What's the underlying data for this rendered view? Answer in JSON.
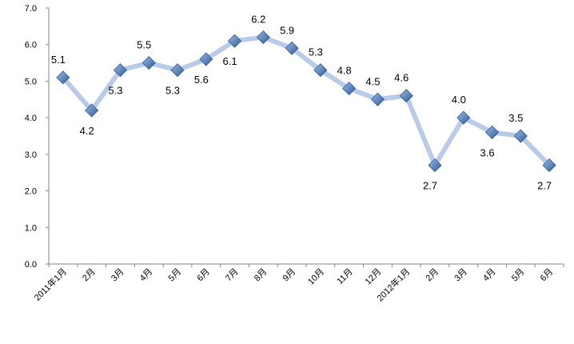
{
  "chart_data": {
    "type": "line",
    "title": "",
    "xlabel": "",
    "ylabel": "",
    "categories": [
      "2011年1月",
      "2月",
      "3月",
      "4月",
      "5月",
      "6月",
      "7月",
      "8月",
      "9月",
      "10月",
      "11月",
      "12月",
      "2012年1月",
      "2月",
      "3月",
      "4月",
      "5月",
      "6月"
    ],
    "series": [
      {
        "name": "",
        "values": [
          5.1,
          4.2,
          5.3,
          5.5,
          5.3,
          5.6,
          6.1,
          6.2,
          5.9,
          5.3,
          4.8,
          4.5,
          4.6,
          2.7,
          4.0,
          3.6,
          3.5,
          2.7
        ]
      }
    ],
    "data_labels": [
      "5.1",
      "4.2",
      "5.3",
      "5.5",
      "5.3",
      "5.6",
      "6.1",
      "6.2",
      "5.9",
      "5.3",
      "4.8",
      "4.5",
      "4.6",
      "2.7",
      "4.0",
      "3.6",
      "3.5",
      "2.7"
    ],
    "ylim": [
      0,
      7
    ],
    "yticks": [
      "0.0",
      "1.0",
      "2.0",
      "3.0",
      "4.0",
      "5.0",
      "6.0",
      "7.0"
    ],
    "grid": false,
    "legend": "none",
    "colors": {
      "line": "#b9cbe8",
      "marker": "#4a7cc0",
      "marker_edge": "#2f5a96"
    }
  }
}
